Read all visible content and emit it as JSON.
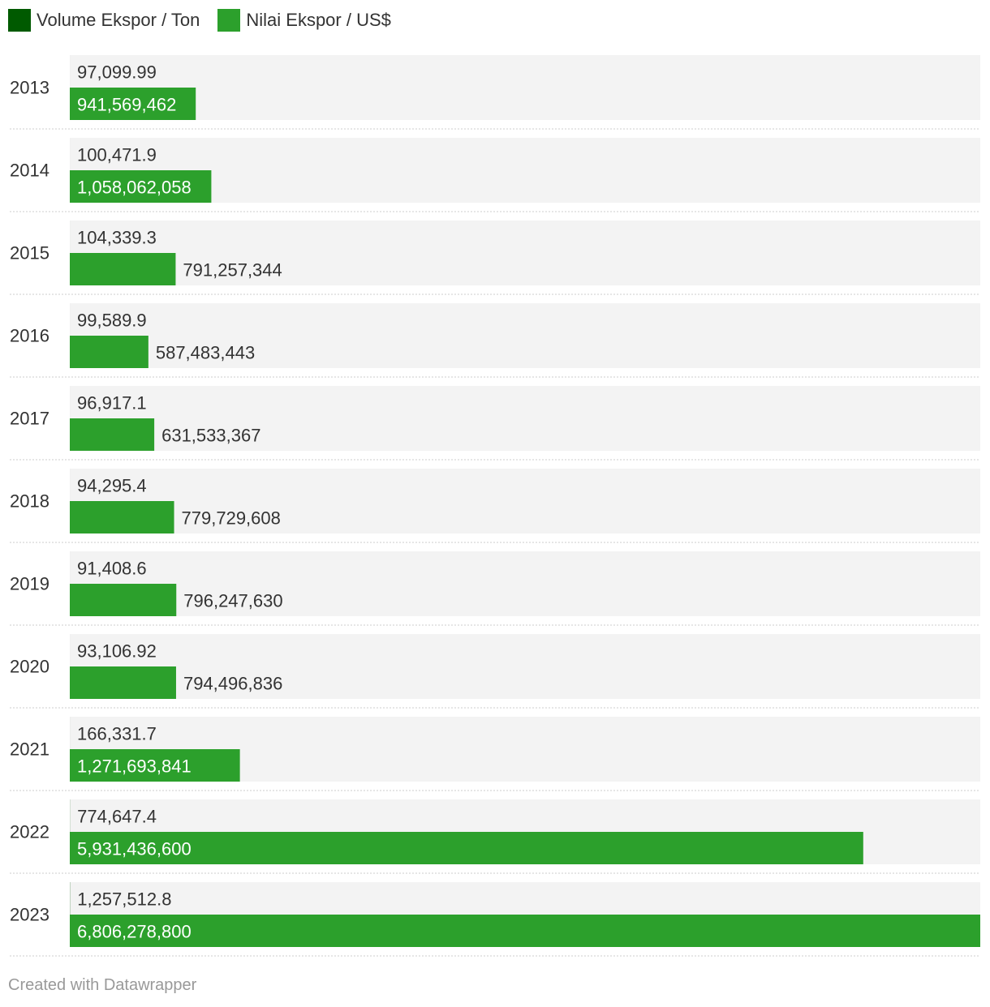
{
  "legend": [
    {
      "label": "Volume Ekspor / Ton",
      "color": "#005a00"
    },
    {
      "label": "Nilai Ekspor / US$",
      "color": "#2ca02c"
    }
  ],
  "footer": "Created with Datawrapper",
  "chart_data": {
    "type": "bar",
    "orientation": "horizontal",
    "grouped": true,
    "categories": [
      "2013",
      "2014",
      "2015",
      "2016",
      "2017",
      "2018",
      "2019",
      "2020",
      "2021",
      "2022",
      "2023"
    ],
    "xlim": [
      0,
      6806278800
    ],
    "legend_position": "top-left",
    "grid": false,
    "background_color": "#f3f3f3",
    "separator_style": "dotted",
    "series": [
      {
        "name": "Volume Ekspor / Ton",
        "color": "#005a00",
        "values": [
          97099.99,
          100471.9,
          104339.3,
          99589.9,
          96917.1,
          94295.4,
          91408.6,
          93106.92,
          166331.7,
          774647.4,
          1257512.8
        ],
        "labels": [
          "97,099.99",
          "100,471.9",
          "104,339.3",
          "99,589.9",
          "96,917.1",
          "94,295.4",
          "91,408.6",
          "93,106.92",
          "166,331.7",
          "774,647.4",
          "1,257,512.8"
        ]
      },
      {
        "name": "Nilai Ekspor / US$",
        "color": "#2ca02c",
        "values": [
          941569462,
          1058062058,
          791257344,
          587483443,
          631533367,
          779729608,
          796247630,
          794496836,
          1271693841,
          5931436600,
          6806278800
        ],
        "labels": [
          "941,569,462",
          "1,058,062,058",
          "791,257,344",
          "587,483,443",
          "631,533,367",
          "779,729,608",
          "796,247,630",
          "794,496,836",
          "1,271,693,841",
          "5,931,436,600",
          "6,806,278,800"
        ]
      }
    ]
  }
}
